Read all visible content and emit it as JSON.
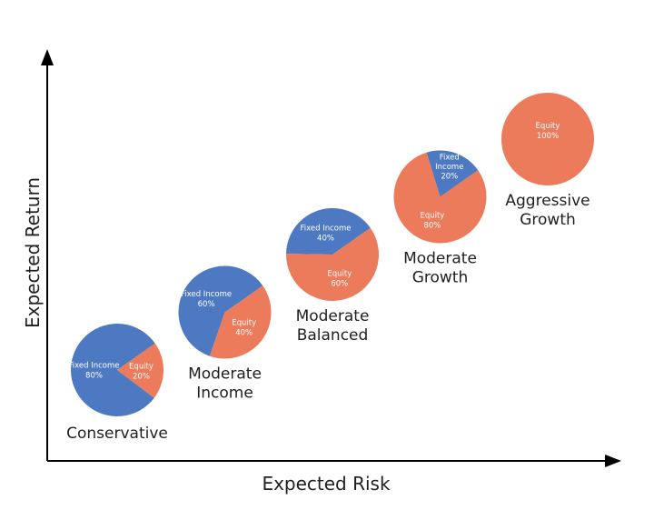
{
  "chart_data": {
    "type": "pie",
    "xlabel": "Expected Risk",
    "ylabel": "Expected Return",
    "colors": {
      "Fixed Income": "#4d78c2",
      "Equity": "#ec7b5b"
    },
    "portfolios": [
      {
        "name": [
          "Conservative"
        ],
        "risk": 1,
        "return": 1,
        "slices": [
          {
            "label": "Fixed Income",
            "value": 80,
            "text": "80%"
          },
          {
            "label": "Equity",
            "value": 20,
            "text": "20%"
          }
        ]
      },
      {
        "name": [
          "Moderate",
          "Income"
        ],
        "risk": 2,
        "return": 2,
        "slices": [
          {
            "label": "Fixed Income",
            "value": 60,
            "text": "60%"
          },
          {
            "label": "Equity",
            "value": 40,
            "text": "40%"
          }
        ]
      },
      {
        "name": [
          "Moderate",
          "Balanced"
        ],
        "risk": 3,
        "return": 3,
        "slices": [
          {
            "label": "Fixed Income",
            "value": 40,
            "text": "40%"
          },
          {
            "label": "Equity",
            "value": 60,
            "text": "60%"
          }
        ]
      },
      {
        "name": [
          "Moderate",
          "Growth"
        ],
        "risk": 4,
        "return": 4,
        "slices": [
          {
            "label": "Fixed Income",
            "value": 20,
            "text": "20%"
          },
          {
            "label": "Equity",
            "value": 80,
            "text": "80%"
          }
        ]
      },
      {
        "name": [
          "Aggressive",
          "Growth"
        ],
        "risk": 5,
        "return": 5,
        "slices": [
          {
            "label": "Equity",
            "value": 100,
            "text": "100%"
          }
        ]
      }
    ]
  }
}
